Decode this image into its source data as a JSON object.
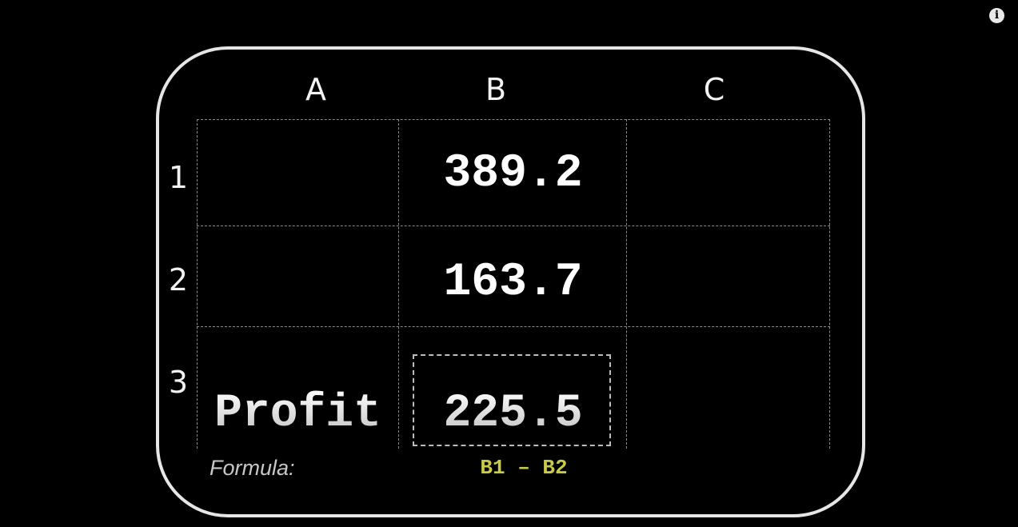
{
  "info_icon": {
    "glyph": "i"
  },
  "sheet": {
    "columns": [
      "A",
      "B",
      "C"
    ],
    "rows": [
      "1",
      "2",
      "3"
    ],
    "cells": {
      "B1": "389.2",
      "B2": "163.7",
      "A3": "Profit",
      "B3": "225.5"
    }
  },
  "formula": {
    "label": "Formula:",
    "expression": "B1 – B2",
    "color": "#c9c94a"
  }
}
